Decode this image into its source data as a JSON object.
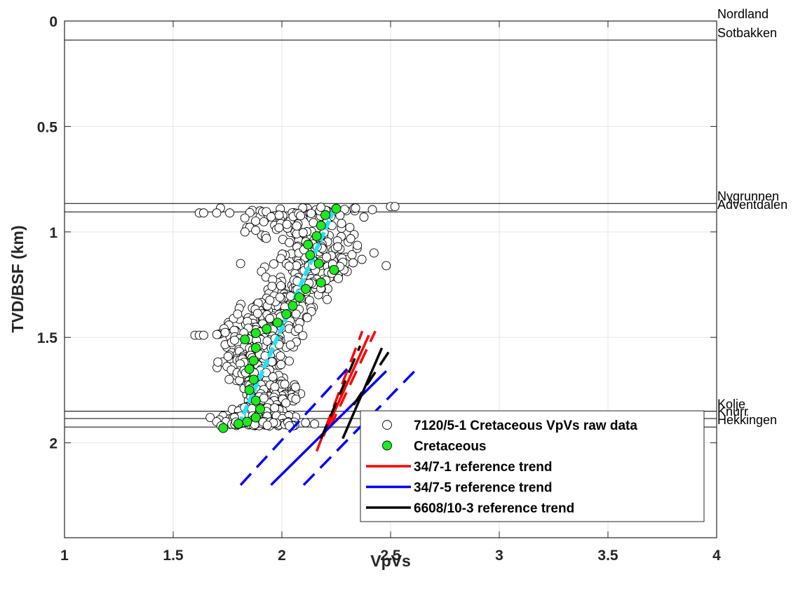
{
  "chart_data": {
    "type": "scatter",
    "title": "",
    "xlabel": "VpVs",
    "ylabel": "TVD/BSF (km)",
    "xlim": [
      1,
      4
    ],
    "ylim": [
      0,
      2.45
    ],
    "y_reversed": true,
    "grid": true,
    "x_ticks": [
      1,
      1.5,
      2,
      2.5,
      3,
      3.5,
      4
    ],
    "x_tick_labels": [
      "1",
      "1.5",
      "2",
      "2.5",
      "3",
      "3.5",
      "4"
    ],
    "y_ticks": [
      0,
      0.5,
      1,
      1.5,
      2
    ],
    "y_tick_labels": [
      "0",
      "0.5",
      "1",
      "1.5",
      "2"
    ],
    "legend_position": "bottom-right",
    "horizons": [
      {
        "name": "Nordland",
        "depth": 0.0
      },
      {
        "name": "Sotbakken",
        "depth": 0.09
      },
      {
        "name": "Nygrunnen",
        "depth": 0.865
      },
      {
        "name": "Adventdalen",
        "depth": 0.905
      },
      {
        "name": "Kolje",
        "depth": 1.85
      },
      {
        "name": "Knurr",
        "depth": 1.885
      },
      {
        "name": "Hekkingen",
        "depth": 1.925
      }
    ],
    "series": [
      {
        "name": "7120/5-1 Cretaceous VpVs raw data",
        "kind": "markers",
        "marker_fill": "#ffffff",
        "marker_edge": "#000000",
        "trend_x": [
          2.1,
          2.05,
          2.15,
          2.2,
          2.12,
          2.05,
          1.98,
          1.92,
          1.88,
          1.86,
          1.85,
          1.9,
          1.95,
          1.9,
          1.88,
          1.9,
          1.92
        ],
        "trend_y": [
          0.88,
          0.95,
          1.05,
          1.15,
          1.22,
          1.3,
          1.38,
          1.45,
          1.5,
          1.58,
          1.65,
          1.72,
          1.78,
          1.83,
          1.87,
          1.9,
          1.92
        ],
        "spread": [
          0.3,
          0.22,
          0.16,
          0.2,
          0.15,
          0.13,
          0.14,
          0.14,
          0.16,
          0.12,
          0.12,
          0.12,
          0.11,
          0.11,
          0.14,
          0.16,
          0.16
        ],
        "extra_points": [
          [
            1.62,
            0.91
          ],
          [
            1.64,
            0.91
          ],
          [
            1.7,
            0.91
          ],
          [
            1.76,
            0.91
          ],
          [
            1.81,
            1.15
          ],
          [
            1.83,
            1.0
          ],
          [
            2.5,
            0.88
          ],
          [
            2.52,
            0.88
          ],
          [
            2.48,
            1.16
          ],
          [
            1.6,
            1.49
          ],
          [
            1.62,
            1.49
          ],
          [
            1.64,
            1.49
          ],
          [
            1.67,
            1.88
          ],
          [
            1.7,
            1.9
          ],
          [
            1.72,
            1.92
          ]
        ]
      },
      {
        "name": "Cretaceous",
        "kind": "markers",
        "marker_fill": "#1ee81e",
        "marker_edge": "#000000",
        "points": [
          [
            2.25,
            0.89
          ],
          [
            2.2,
            0.92
          ],
          [
            2.18,
            0.97
          ],
          [
            2.16,
            1.02
          ],
          [
            2.12,
            1.06
          ],
          [
            2.13,
            1.11
          ],
          [
            2.17,
            1.15
          ],
          [
            2.24,
            1.18
          ],
          [
            2.18,
            1.24
          ],
          [
            2.11,
            1.27
          ],
          [
            2.08,
            1.31
          ],
          [
            2.05,
            1.35
          ],
          [
            2.02,
            1.39
          ],
          [
            1.98,
            1.43
          ],
          [
            1.93,
            1.46
          ],
          [
            1.88,
            1.48
          ],
          [
            1.83,
            1.51
          ],
          [
            1.88,
            1.55
          ],
          [
            1.87,
            1.61
          ],
          [
            1.85,
            1.65
          ],
          [
            1.87,
            1.7
          ],
          [
            1.85,
            1.75
          ],
          [
            1.88,
            1.8
          ],
          [
            1.9,
            1.84
          ],
          [
            1.88,
            1.88
          ],
          [
            1.84,
            1.9
          ],
          [
            1.8,
            1.91
          ],
          [
            1.73,
            1.93
          ]
        ]
      },
      {
        "name": "Cretaceous trend",
        "kind": "line",
        "color": "#22e3f0",
        "x": [
          1.8,
          2.25
        ],
        "y": [
          1.92,
          0.87
        ]
      },
      {
        "name": "34/7-1 reference trend",
        "kind": "line",
        "color": "#ff0000",
        "x": [
          2.19,
          2.4
        ],
        "y": [
          1.97,
          1.49
        ],
        "bounds": [
          {
            "x": [
              2.16,
              2.37
            ],
            "y": [
              2.04,
              1.47
            ]
          },
          {
            "x": [
              2.22,
              2.43
            ],
            "y": [
              1.93,
              1.47
            ]
          }
        ]
      },
      {
        "name": "34/7-5 reference trend",
        "kind": "line",
        "color": "#0000ff",
        "x": [
          1.95,
          2.48
        ],
        "y": [
          2.2,
          1.66
        ],
        "bounds": [
          {
            "x": [
              1.81,
              2.3
            ],
            "y": [
              2.2,
              1.65
            ]
          },
          {
            "x": [
              2.1,
              2.62
            ],
            "y": [
              2.2,
              1.65
            ]
          }
        ]
      },
      {
        "name": "6608/10-3 reference trend",
        "kind": "line",
        "color": "#000000",
        "x": [
          2.28,
          2.46
        ],
        "y": [
          1.98,
          1.55
        ],
        "bounds": [
          {
            "x": [
              2.18,
              2.36
            ],
            "y": [
              1.98,
              1.54
            ]
          },
          {
            "x": [
              2.33,
              2.51
            ],
            "y": [
              1.82,
              1.54
            ]
          }
        ]
      }
    ]
  }
}
